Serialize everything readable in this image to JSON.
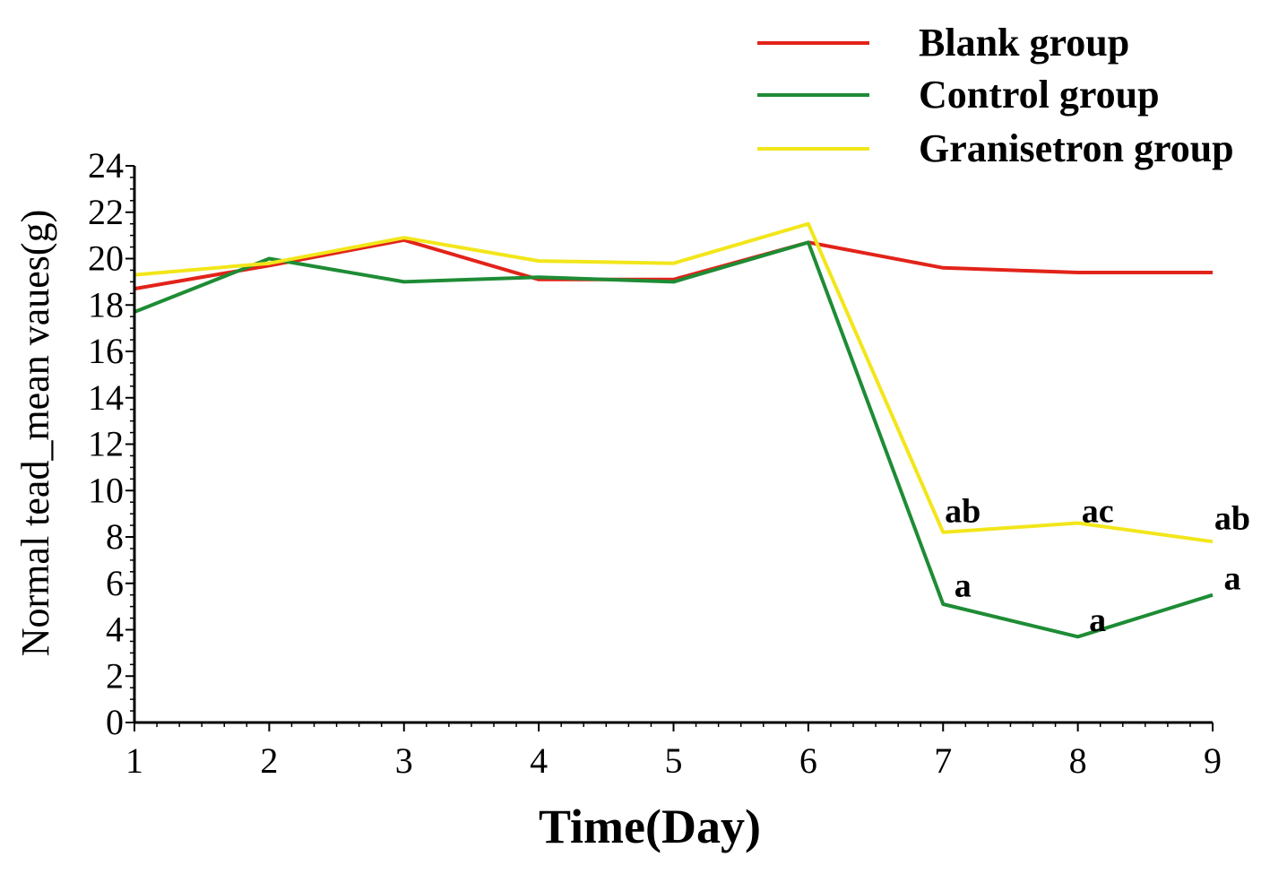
{
  "chart_data": {
    "type": "line",
    "title": "",
    "xlabel": "Time(Day)",
    "ylabel": "Normal tead_mean vaues(g)",
    "x": [
      1,
      2,
      3,
      4,
      5,
      6,
      7,
      8,
      9
    ],
    "xlim": [
      1,
      9
    ],
    "ylim": [
      0,
      24
    ],
    "xticks": [
      1,
      2,
      3,
      4,
      5,
      6,
      7,
      8,
      9
    ],
    "yticks": [
      0,
      2,
      4,
      6,
      8,
      10,
      12,
      14,
      16,
      18,
      20,
      22,
      24
    ],
    "grid": false,
    "legend_position": "top-right",
    "series": [
      {
        "name": "Blank group",
        "color": "#e2231a",
        "values": [
          18.7,
          19.7,
          20.8,
          19.1,
          19.1,
          20.7,
          19.6,
          19.4,
          19.4
        ]
      },
      {
        "name": "Control group",
        "color": "#1e8c35",
        "values": [
          17.7,
          20.0,
          19.0,
          19.2,
          19.0,
          20.7,
          5.1,
          3.7,
          5.5
        ]
      },
      {
        "name": "Granisetron group",
        "color": "#f2e61a",
        "values": [
          19.3,
          19.8,
          20.9,
          19.9,
          19.8,
          21.5,
          8.2,
          8.6,
          7.8
        ]
      }
    ],
    "annotations": [
      {
        "text": "ab",
        "x": 7,
        "y": 9.1
      },
      {
        "text": "ac",
        "x": 8,
        "y": 9.1
      },
      {
        "text": "ab",
        "x": 9,
        "y": 8.8
      },
      {
        "text": "a",
        "x": 7,
        "y": 5.9
      },
      {
        "text": "a",
        "x": 8,
        "y": 4.4
      },
      {
        "text": "a",
        "x": 9,
        "y": 6.2
      }
    ]
  }
}
